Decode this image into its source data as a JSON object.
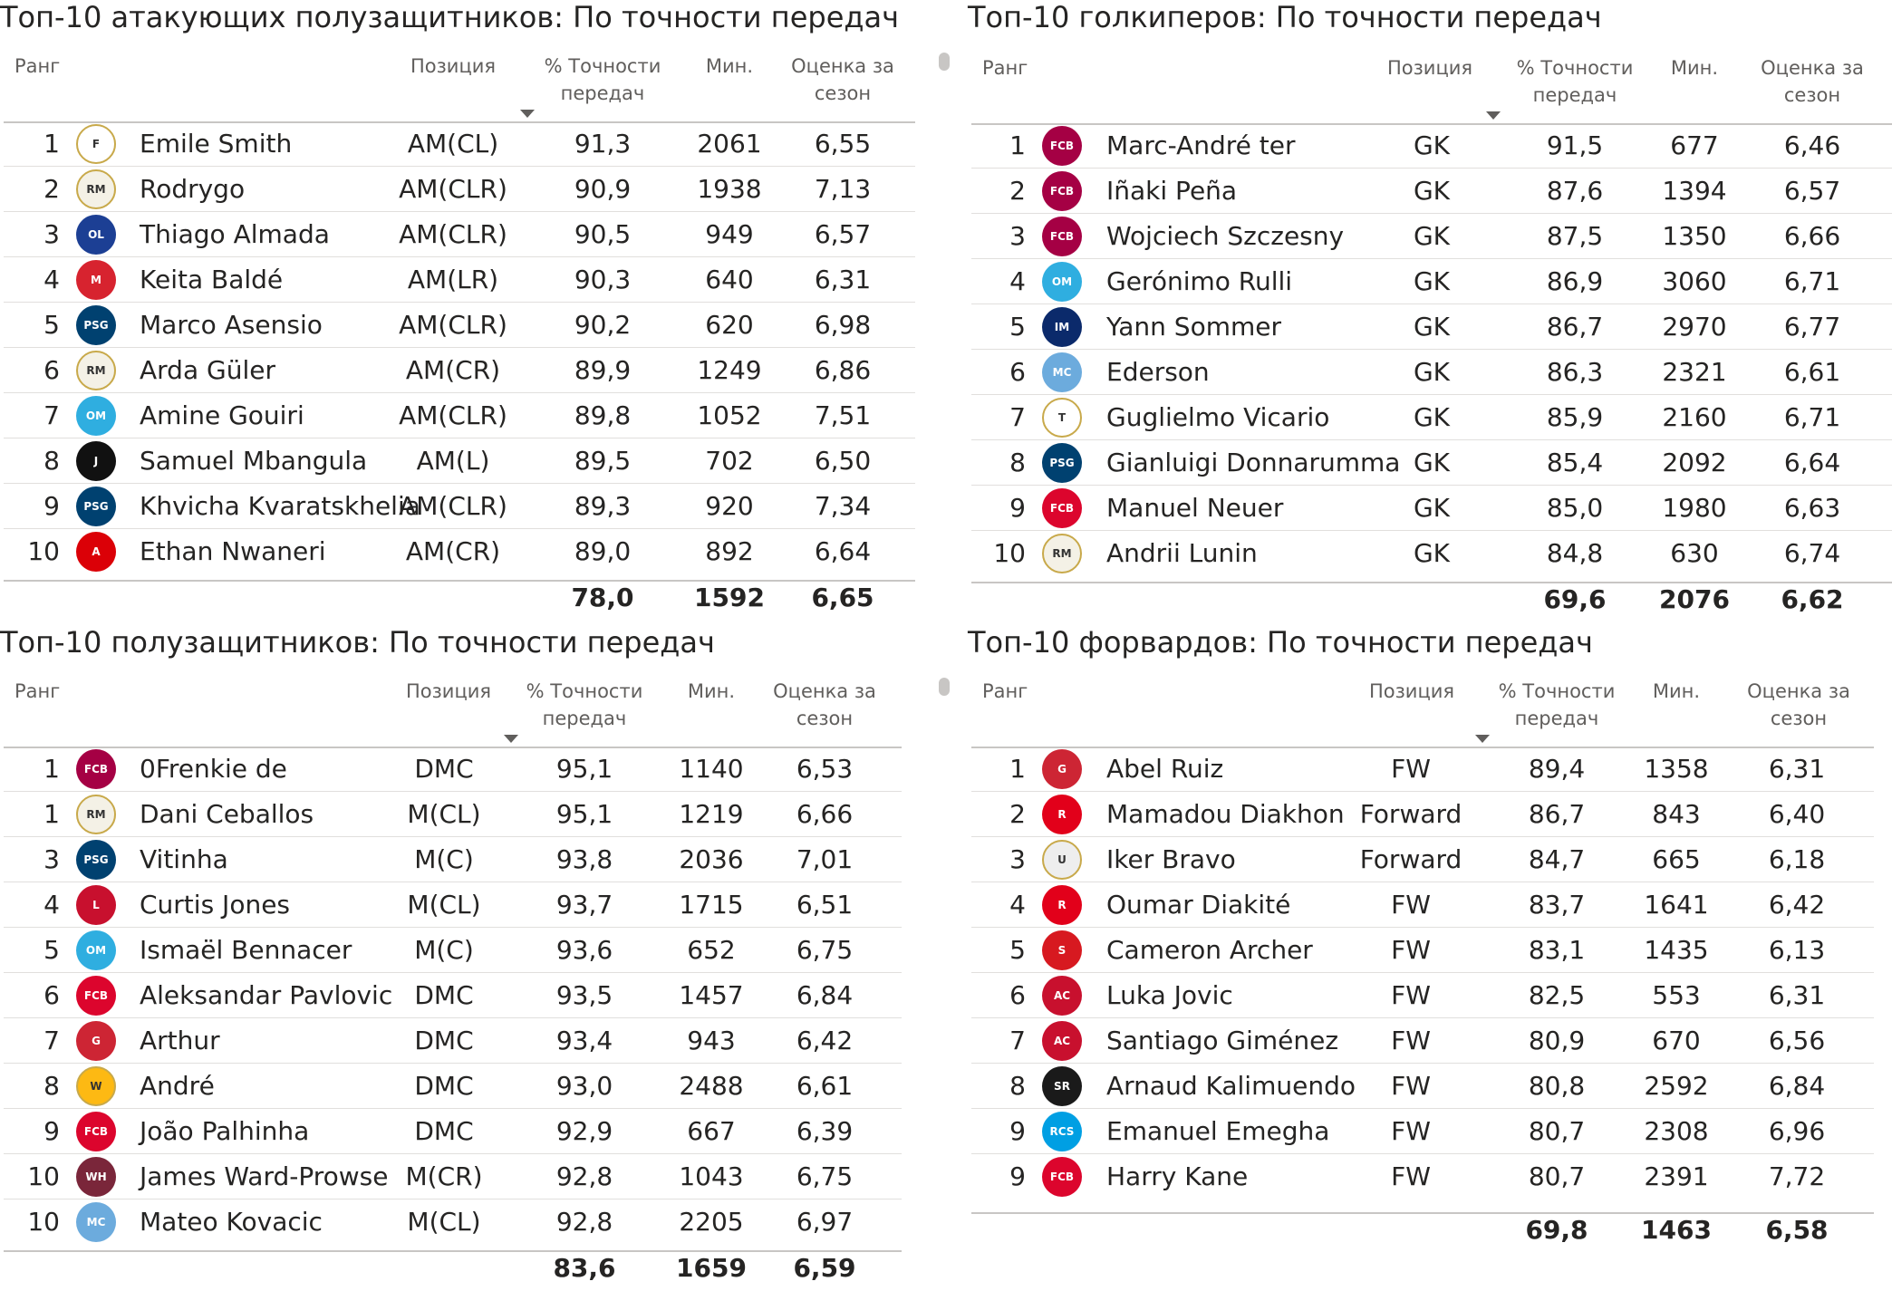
{
  "panels": [
    {
      "title": "Топ-10 атакующих полузащитников: По точности передач",
      "headers": {
        "rank": "Ранг",
        "position": "Позиция",
        "accuracy": "% Точности передач",
        "minutes": "Мин.",
        "rating": "Оценка за сезон"
      },
      "rows": [
        {
          "rank": "1",
          "player": "Emile Smith",
          "club": "fulham",
          "position": "AM(CL)",
          "accuracy": "91,3",
          "minutes": "2061",
          "rating": "6,55"
        },
        {
          "rank": "2",
          "player": "Rodrygo",
          "club": "real-madrid",
          "position": "AM(CLR)",
          "accuracy": "90,9",
          "minutes": "1938",
          "rating": "7,13"
        },
        {
          "rank": "3",
          "player": "Thiago Almada",
          "club": "lyon",
          "position": "AM(CLR)",
          "accuracy": "90,5",
          "minutes": "949",
          "rating": "6,57"
        },
        {
          "rank": "4",
          "player": "Keita Baldé",
          "club": "monza",
          "position": "AM(LR)",
          "accuracy": "90,3",
          "minutes": "640",
          "rating": "6,31"
        },
        {
          "rank": "5",
          "player": "Marco Asensio",
          "club": "psg",
          "position": "AM(CLR)",
          "accuracy": "90,2",
          "minutes": "620",
          "rating": "6,98"
        },
        {
          "rank": "6",
          "player": "Arda Güler",
          "club": "real-madrid",
          "position": "AM(CR)",
          "accuracy": "89,9",
          "minutes": "1249",
          "rating": "6,86"
        },
        {
          "rank": "7",
          "player": "Amine Gouiri",
          "club": "marseille",
          "position": "AM(CLR)",
          "accuracy": "89,8",
          "minutes": "1052",
          "rating": "7,51"
        },
        {
          "rank": "8",
          "player": "Samuel Mbangula",
          "club": "juventus",
          "position": "AM(L)",
          "accuracy": "89,5",
          "minutes": "702",
          "rating": "6,50"
        },
        {
          "rank": "9",
          "player": "Khvicha Kvaratskhelia",
          "club": "psg",
          "position": "AM(CLR)",
          "accuracy": "89,3",
          "minutes": "920",
          "rating": "7,34"
        },
        {
          "rank": "10",
          "player": "Ethan Nwaneri",
          "club": "arsenal",
          "position": "AM(CR)",
          "accuracy": "89,0",
          "minutes": "892",
          "rating": "6,64"
        }
      ],
      "totals": {
        "accuracy": "78,0",
        "minutes": "1592",
        "rating": "6,65"
      }
    },
    {
      "title": "Топ-10 голкиперов: По точности передач",
      "headers": {
        "rank": "Ранг",
        "position": "Позиция",
        "accuracy": "% Точности передач",
        "minutes": "Мин.",
        "rating": "Оценка за сезон"
      },
      "rows": [
        {
          "rank": "1",
          "player": "Marc-André ter",
          "club": "barcelona",
          "position": "GK",
          "accuracy": "91,5",
          "minutes": "677",
          "rating": "6,46"
        },
        {
          "rank": "2",
          "player": "Iñaki Peña",
          "club": "barcelona",
          "position": "GK",
          "accuracy": "87,6",
          "minutes": "1394",
          "rating": "6,57"
        },
        {
          "rank": "3",
          "player": "Wojciech Szczesny",
          "club": "barcelona",
          "position": "GK",
          "accuracy": "87,5",
          "minutes": "1350",
          "rating": "6,66"
        },
        {
          "rank": "4",
          "player": "Gerónimo Rulli",
          "club": "marseille",
          "position": "GK",
          "accuracy": "86,9",
          "minutes": "3060",
          "rating": "6,71"
        },
        {
          "rank": "5",
          "player": "Yann Sommer",
          "club": "inter",
          "position": "GK",
          "accuracy": "86,7",
          "minutes": "2970",
          "rating": "6,77"
        },
        {
          "rank": "6",
          "player": "Ederson",
          "club": "man-city",
          "position": "GK",
          "accuracy": "86,3",
          "minutes": "2321",
          "rating": "6,61"
        },
        {
          "rank": "7",
          "player": "Guglielmo Vicario",
          "club": "tottenham",
          "position": "GK",
          "accuracy": "85,9",
          "minutes": "2160",
          "rating": "6,71"
        },
        {
          "rank": "8",
          "player": "Gianluigi Donnarumma",
          "club": "psg",
          "position": "GK",
          "accuracy": "85,4",
          "minutes": "2092",
          "rating": "6,64"
        },
        {
          "rank": "9",
          "player": "Manuel Neuer",
          "club": "bayern",
          "position": "GK",
          "accuracy": "85,0",
          "minutes": "1980",
          "rating": "6,63"
        },
        {
          "rank": "10",
          "player": "Andrii Lunin",
          "club": "real-madrid",
          "position": "GK",
          "accuracy": "84,8",
          "minutes": "630",
          "rating": "6,74"
        }
      ],
      "totals": {
        "accuracy": "69,6",
        "minutes": "2076",
        "rating": "6,62"
      }
    },
    {
      "title": "Топ-10 полузащитников: По точности передач",
      "headers": {
        "rank": "Ранг",
        "position": "Позиция",
        "accuracy": "% Точности передач",
        "minutes": "Мин.",
        "rating": "Оценка за сезон"
      },
      "rows": [
        {
          "rank": "1",
          "player": "0Frenkie de",
          "club": "barcelona",
          "position": "DMC",
          "accuracy": "95,1",
          "minutes": "1140",
          "rating": "6,53"
        },
        {
          "rank": "1",
          "player": "Dani Ceballos",
          "club": "real-madrid",
          "position": "M(CL)",
          "accuracy": "95,1",
          "minutes": "1219",
          "rating": "6,66"
        },
        {
          "rank": "3",
          "player": "Vitinha",
          "club": "psg",
          "position": "M(C)",
          "accuracy": "93,8",
          "minutes": "2036",
          "rating": "7,01"
        },
        {
          "rank": "4",
          "player": "Curtis Jones",
          "club": "liverpool",
          "position": "M(CL)",
          "accuracy": "93,7",
          "minutes": "1715",
          "rating": "6,51"
        },
        {
          "rank": "5",
          "player": "Ismaël Bennacer",
          "club": "marseille",
          "position": "M(C)",
          "accuracy": "93,6",
          "minutes": "652",
          "rating": "6,75"
        },
        {
          "rank": "6",
          "player": "Aleksandar Pavlovic",
          "club": "bayern",
          "position": "DMC",
          "accuracy": "93,5",
          "minutes": "1457",
          "rating": "6,84"
        },
        {
          "rank": "7",
          "player": "Arthur",
          "club": "girona",
          "position": "DMC",
          "accuracy": "93,4",
          "minutes": "943",
          "rating": "6,42"
        },
        {
          "rank": "8",
          "player": "André",
          "club": "wolves",
          "position": "DMC",
          "accuracy": "93,0",
          "minutes": "2488",
          "rating": "6,61"
        },
        {
          "rank": "9",
          "player": "João Palhinha",
          "club": "bayern",
          "position": "DMC",
          "accuracy": "92,9",
          "minutes": "667",
          "rating": "6,39"
        },
        {
          "rank": "10",
          "player": "James Ward-Prowse",
          "club": "west-ham",
          "position": "M(CR)",
          "accuracy": "92,8",
          "minutes": "1043",
          "rating": "6,75"
        },
        {
          "rank": "10",
          "player": "Mateo Kovacic",
          "club": "man-city",
          "position": "M(CL)",
          "accuracy": "92,8",
          "minutes": "2205",
          "rating": "6,97"
        }
      ],
      "totals": {
        "accuracy": "83,6",
        "minutes": "1659",
        "rating": "6,59"
      }
    },
    {
      "title": "Топ-10 форвардов: По точности передач",
      "headers": {
        "rank": "Ранг",
        "position": "Позиция",
        "accuracy": "% Точности передач",
        "minutes": "Мин.",
        "rating": "Оценка за сезон"
      },
      "rows": [
        {
          "rank": "1",
          "player": "Abel Ruiz",
          "club": "girona",
          "position": "FW",
          "accuracy": "89,4",
          "minutes": "1358",
          "rating": "6,31"
        },
        {
          "rank": "2",
          "player": "Mamadou Diakhon",
          "club": "reims",
          "position": "Forward",
          "accuracy": "86,7",
          "minutes": "843",
          "rating": "6,40"
        },
        {
          "rank": "3",
          "player": "Iker Bravo",
          "club": "udinese",
          "position": "Forward",
          "accuracy": "84,7",
          "minutes": "665",
          "rating": "6,18"
        },
        {
          "rank": "4",
          "player": "Oumar Diakité",
          "club": "reims",
          "position": "FW",
          "accuracy": "83,7",
          "minutes": "1641",
          "rating": "6,42"
        },
        {
          "rank": "5",
          "player": "Cameron Archer",
          "club": "southampton",
          "position": "FW",
          "accuracy": "83,1",
          "minutes": "1435",
          "rating": "6,13"
        },
        {
          "rank": "6",
          "player": "Luka Jovic",
          "club": "milan",
          "position": "FW",
          "accuracy": "82,5",
          "minutes": "553",
          "rating": "6,31"
        },
        {
          "rank": "7",
          "player": "Santiago Giménez",
          "club": "milan",
          "position": "FW",
          "accuracy": "80,9",
          "minutes": "670",
          "rating": "6,56"
        },
        {
          "rank": "8",
          "player": "Arnaud Kalimuendo",
          "club": "rennes",
          "position": "FW",
          "accuracy": "80,8",
          "minutes": "2592",
          "rating": "6,84"
        },
        {
          "rank": "9",
          "player": "Emanuel Emegha",
          "club": "strasbourg",
          "position": "FW",
          "accuracy": "80,7",
          "minutes": "2308",
          "rating": "6,96"
        },
        {
          "rank": "9",
          "player": "Harry Kane",
          "club": "bayern",
          "position": "FW",
          "accuracy": "80,7",
          "minutes": "2391",
          "rating": "7,72"
        }
      ],
      "totals": {
        "accuracy": "69,8",
        "minutes": "1463",
        "rating": "6,58"
      }
    }
  ],
  "club_colors": {
    "fulham": "#ffffff",
    "real-madrid": "#f4f1e6",
    "lyon": "#1c3f94",
    "monza": "#d7232f",
    "psg": "#004170",
    "marseille": "#2faee0",
    "juventus": "#111111",
    "arsenal": "#db0007",
    "barcelona": "#a50044",
    "inter": "#0b2a6b",
    "man-city": "#6cabdd",
    "tottenham": "#ffffff",
    "bayern": "#dc052d",
    "liverpool": "#c8102e",
    "girona": "#cd2534",
    "wolves": "#fdb913",
    "west-ham": "#7a263a",
    "reims": "#e2001a",
    "udinese": "#eeeeee",
    "southampton": "#d71920",
    "milan": "#c8102e",
    "rennes": "#1a1a1a",
    "strasbourg": "#009fe3"
  }
}
